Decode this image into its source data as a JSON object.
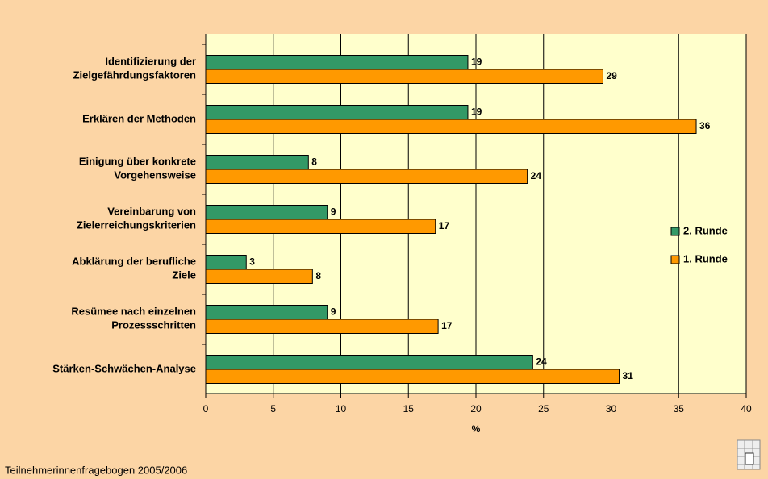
{
  "chart_data": {
    "type": "hbar",
    "categories": [
      "Identifizierung der\nZielgefährdungsfaktoren",
      "Erklären der Methoden",
      "Einigung über konkrete\nVorgehensweise",
      "Vereinbarung von\nZielerreichungskriterien",
      "Abklärung der berufliche\nZiele",
      "Resümee nach einzelnen\nProzessschritten",
      "Stärken-Schwächen-Analyse"
    ],
    "series": [
      {
        "name": "2. Runde",
        "color": "#339966",
        "values": [
          19.4,
          19.4,
          7.6,
          9.0,
          3.0,
          9.0,
          24.2
        ],
        "value_labels": [
          "19",
          "19",
          "8",
          "9",
          "3",
          "9",
          "24"
        ]
      },
      {
        "name": "1. Runde",
        "color": "#ff9900",
        "values": [
          29.4,
          36.3,
          23.8,
          17.0,
          7.9,
          17.2,
          30.6
        ],
        "value_labels": [
          "29",
          "36",
          "24",
          "17",
          "8",
          "17",
          "31"
        ]
      }
    ],
    "xlim": [
      0,
      40
    ],
    "xticks": [
      0,
      5,
      10,
      15,
      20,
      25,
      30,
      35,
      40
    ],
    "grid": true,
    "legend": "right",
    "x_label": "%",
    "footer": "Teilnehmerinnenfragebogen 2005/2006"
  }
}
